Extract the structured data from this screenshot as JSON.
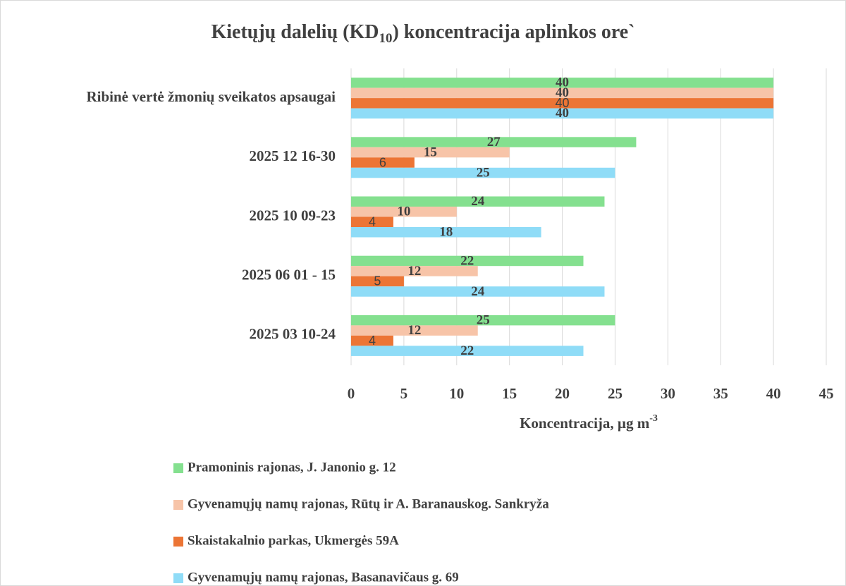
{
  "chart_data": {
    "type": "hbar",
    "title": [
      "Kietųjų dalelių (KD",
      "10",
      ") koncentracija aplinkos ore`"
    ],
    "xlabel": [
      "Koncentracija, µg m",
      "-3"
    ],
    "categories": [
      "2025 03 10-24",
      "2025 06 01 - 15",
      "2025 10 09-23",
      "2025 12 16-30",
      "Ribinė vertė žmonių sveikatos apsaugai"
    ],
    "series": [
      {
        "name": "Pramoninis rajonas, J. Janonio g. 12",
        "color": "#84e08f",
        "values": [
          25,
          22,
          24,
          27,
          40
        ]
      },
      {
        "name": "Gyvenamųjų namų rajonas, Rūtų ir A. Baranauskog. Sankryža",
        "color": "#f7c4a8",
        "values": [
          12,
          12,
          10,
          15,
          40
        ]
      },
      {
        "name": "Skaistakalnio parkas, Ukmergės 59A",
        "color": "#ec7535",
        "values": [
          4,
          5,
          4,
          6,
          40
        ]
      },
      {
        "name": "Gyvenamųjų namų rajonas, Basanavičaus g. 69",
        "color": "#8fdcf7",
        "values": [
          22,
          24,
          18,
          25,
          40
        ]
      }
    ],
    "xlim": [
      0,
      45
    ],
    "xticks": [
      0,
      5,
      10,
      15,
      20,
      25,
      30,
      35,
      40,
      45
    ],
    "grid": true,
    "legend": "bottom"
  }
}
